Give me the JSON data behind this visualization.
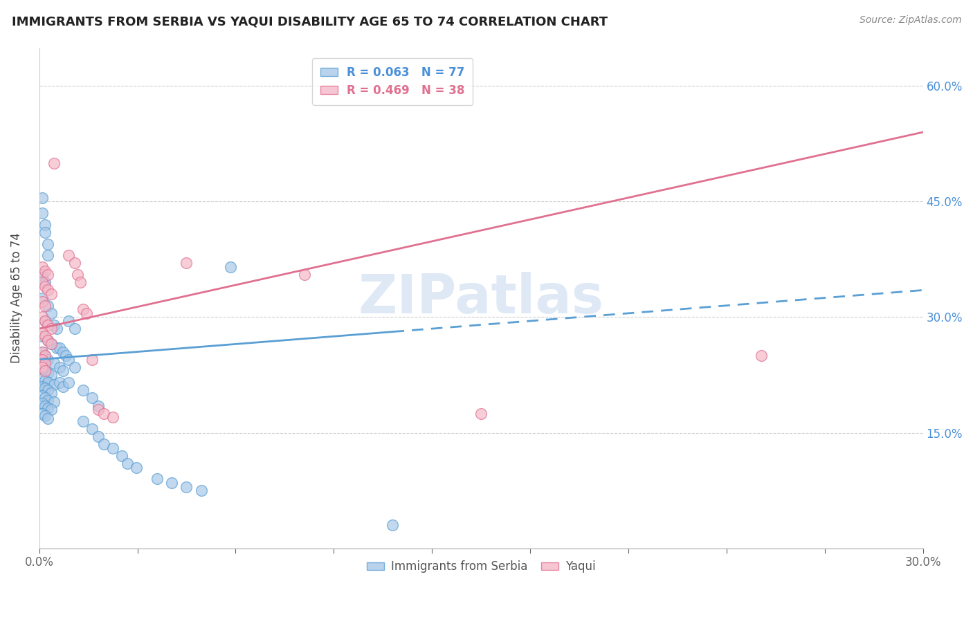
{
  "title": "IMMIGRANTS FROM SERBIA VS YAQUI DISABILITY AGE 65 TO 74 CORRELATION CHART",
  "source": "Source: ZipAtlas.com",
  "ylabel": "Disability Age 65 to 74",
  "xlim": [
    0.0,
    0.3
  ],
  "ylim": [
    0.0,
    0.65
  ],
  "watermark": "ZIPatlas",
  "serbia_color": "#a8c8e8",
  "serbia_edge_color": "#5a9fd4",
  "yaqui_color": "#f4b8c8",
  "yaqui_edge_color": "#e07090",
  "serbia_line_color": "#5a9fd4",
  "yaqui_line_color": "#e07090",
  "serbia_line_intercept": 0.245,
  "serbia_line_slope": 0.3,
  "yaqui_line_intercept": 0.285,
  "yaqui_line_slope": 0.85,
  "serbia_points": [
    [
      0.001,
      0.455
    ],
    [
      0.001,
      0.435
    ],
    [
      0.002,
      0.42
    ],
    [
      0.002,
      0.41
    ],
    [
      0.003,
      0.395
    ],
    [
      0.003,
      0.38
    ],
    [
      0.001,
      0.355
    ],
    [
      0.002,
      0.345
    ],
    [
      0.001,
      0.325
    ],
    [
      0.003,
      0.315
    ],
    [
      0.004,
      0.305
    ],
    [
      0.002,
      0.295
    ],
    [
      0.005,
      0.29
    ],
    [
      0.006,
      0.285
    ],
    [
      0.001,
      0.275
    ],
    [
      0.003,
      0.27
    ],
    [
      0.004,
      0.265
    ],
    [
      0.006,
      0.26
    ],
    [
      0.001,
      0.255
    ],
    [
      0.002,
      0.25
    ],
    [
      0.003,
      0.245
    ],
    [
      0.005,
      0.24
    ],
    [
      0.001,
      0.235
    ],
    [
      0.002,
      0.23
    ],
    [
      0.003,
      0.228
    ],
    [
      0.004,
      0.225
    ],
    [
      0.001,
      0.22
    ],
    [
      0.002,
      0.218
    ],
    [
      0.003,
      0.215
    ],
    [
      0.005,
      0.212
    ],
    [
      0.001,
      0.21
    ],
    [
      0.002,
      0.208
    ],
    [
      0.003,
      0.205
    ],
    [
      0.004,
      0.202
    ],
    [
      0.001,
      0.198
    ],
    [
      0.002,
      0.195
    ],
    [
      0.003,
      0.192
    ],
    [
      0.005,
      0.19
    ],
    [
      0.001,
      0.188
    ],
    [
      0.002,
      0.185
    ],
    [
      0.003,
      0.182
    ],
    [
      0.004,
      0.18
    ],
    [
      0.001,
      0.175
    ],
    [
      0.002,
      0.172
    ],
    [
      0.003,
      0.168
    ],
    [
      0.007,
      0.26
    ],
    [
      0.008,
      0.255
    ],
    [
      0.009,
      0.25
    ],
    [
      0.007,
      0.235
    ],
    [
      0.008,
      0.23
    ],
    [
      0.007,
      0.215
    ],
    [
      0.008,
      0.21
    ],
    [
      0.01,
      0.295
    ],
    [
      0.012,
      0.285
    ],
    [
      0.01,
      0.245
    ],
    [
      0.012,
      0.235
    ],
    [
      0.01,
      0.215
    ],
    [
      0.015,
      0.205
    ],
    [
      0.018,
      0.195
    ],
    [
      0.02,
      0.185
    ],
    [
      0.015,
      0.165
    ],
    [
      0.018,
      0.155
    ],
    [
      0.02,
      0.145
    ],
    [
      0.022,
      0.135
    ],
    [
      0.025,
      0.13
    ],
    [
      0.028,
      0.12
    ],
    [
      0.03,
      0.11
    ],
    [
      0.033,
      0.105
    ],
    [
      0.04,
      0.09
    ],
    [
      0.045,
      0.085
    ],
    [
      0.05,
      0.08
    ],
    [
      0.055,
      0.075
    ],
    [
      0.065,
      0.365
    ],
    [
      0.12,
      0.03
    ]
  ],
  "yaqui_points": [
    [
      0.005,
      0.5
    ],
    [
      0.01,
      0.38
    ],
    [
      0.012,
      0.37
    ],
    [
      0.001,
      0.365
    ],
    [
      0.002,
      0.36
    ],
    [
      0.003,
      0.355
    ],
    [
      0.013,
      0.355
    ],
    [
      0.014,
      0.345
    ],
    [
      0.001,
      0.345
    ],
    [
      0.002,
      0.34
    ],
    [
      0.003,
      0.335
    ],
    [
      0.004,
      0.33
    ],
    [
      0.001,
      0.32
    ],
    [
      0.002,
      0.315
    ],
    [
      0.015,
      0.31
    ],
    [
      0.016,
      0.305
    ],
    [
      0.001,
      0.3
    ],
    [
      0.002,
      0.295
    ],
    [
      0.003,
      0.29
    ],
    [
      0.004,
      0.285
    ],
    [
      0.001,
      0.28
    ],
    [
      0.002,
      0.275
    ],
    [
      0.003,
      0.27
    ],
    [
      0.004,
      0.265
    ],
    [
      0.001,
      0.255
    ],
    [
      0.002,
      0.25
    ],
    [
      0.018,
      0.245
    ],
    [
      0.02,
      0.18
    ],
    [
      0.022,
      0.175
    ],
    [
      0.025,
      0.17
    ],
    [
      0.001,
      0.245
    ],
    [
      0.002,
      0.24
    ],
    [
      0.001,
      0.235
    ],
    [
      0.002,
      0.23
    ],
    [
      0.05,
      0.37
    ],
    [
      0.09,
      0.355
    ],
    [
      0.15,
      0.175
    ],
    [
      0.245,
      0.25
    ]
  ]
}
